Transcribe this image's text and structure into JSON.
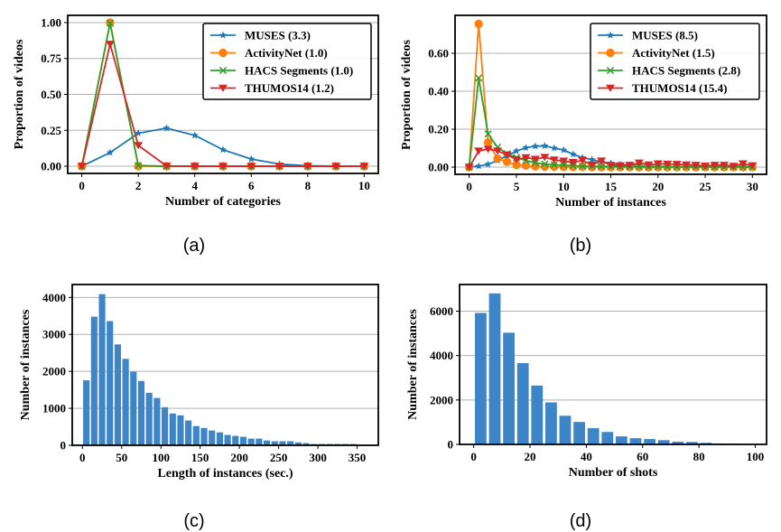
{
  "chart_data": [
    {
      "id": "a",
      "type": "line",
      "caption": "(a)",
      "xlabel": "Number of categories",
      "ylabel": "Proportion of videos",
      "xlim": [
        -0.5,
        10.5
      ],
      "ylim": [
        -0.05,
        1.05
      ],
      "xticks": [
        0,
        2,
        4,
        6,
        8,
        10
      ],
      "xtick_labels": [
        "0",
        "2",
        "4",
        "6",
        "8",
        "10"
      ],
      "yticks": [
        0,
        0.25,
        0.5,
        0.75,
        1.0
      ],
      "ytick_labels": [
        "0.00",
        "0.25",
        "0.50",
        "0.75",
        "1.00"
      ],
      "grid": "y",
      "legend": "top-right",
      "x": [
        0,
        1,
        2,
        3,
        4,
        5,
        6,
        7,
        8,
        9,
        10
      ],
      "series": [
        {
          "name": "MUSES (3.3)",
          "color": "#1f77b4",
          "marker": "star",
          "values": [
            0,
            0.095,
            0.23,
            0.265,
            0.215,
            0.115,
            0.05,
            0.015,
            0.003,
            0.001,
            0
          ]
        },
        {
          "name": "ActivityNet (1.0)",
          "color": "#ff7f0e",
          "marker": "circle",
          "values": [
            0,
            1.0,
            0,
            0,
            0,
            0,
            0,
            0,
            0,
            0,
            0
          ]
        },
        {
          "name": "HACS Segments (1.0)",
          "color": "#2ca02c",
          "marker": "x",
          "values": [
            0,
            0.995,
            0.005,
            0,
            0,
            0,
            0,
            0,
            0,
            0,
            0
          ]
        },
        {
          "name": "THUMOS14 (1.2)",
          "color": "#d62728",
          "marker": "triangle-down",
          "values": [
            0,
            0.85,
            0.145,
            0.002,
            0,
            0,
            0,
            0,
            0,
            0,
            0
          ]
        }
      ]
    },
    {
      "id": "b",
      "type": "line",
      "caption": "(b)",
      "xlabel": "Number of instances",
      "ylabel": "Proportion of videos",
      "xlim": [
        -1.5,
        31.5
      ],
      "ylim": [
        -0.038,
        0.8
      ],
      "xticks": [
        0,
        5,
        10,
        15,
        20,
        25,
        30
      ],
      "xtick_labels": [
        "0",
        "5",
        "10",
        "15",
        "20",
        "25",
        "30"
      ],
      "yticks": [
        0,
        0.2,
        0.4,
        0.6
      ],
      "ytick_labels": [
        "0.00",
        "0.20",
        "0.40",
        "0.60"
      ],
      "grid": "y",
      "legend": "top-right",
      "x": [
        0,
        1,
        2,
        3,
        4,
        5,
        6,
        7,
        8,
        9,
        10,
        11,
        12,
        13,
        14,
        15,
        16,
        17,
        18,
        19,
        20,
        21,
        22,
        23,
        24,
        25,
        26,
        27,
        28,
        29,
        30
      ],
      "series": [
        {
          "name": "MUSES (8.5)",
          "color": "#1f77b4",
          "marker": "star",
          "values": [
            0,
            0.005,
            0.015,
            0.035,
            0.06,
            0.085,
            0.102,
            0.11,
            0.112,
            0.1,
            0.09,
            0.068,
            0.05,
            0.04,
            0.028,
            0.02,
            0.014,
            0.01,
            0.007,
            0.005,
            0.004,
            0.003,
            0.002,
            0.002,
            0.001,
            0.001,
            0.001,
            0.001,
            0.001,
            0.001,
            0.001
          ]
        },
        {
          "name": "ActivityNet (1.5)",
          "color": "#ff7f0e",
          "marker": "circle",
          "values": [
            0,
            0.755,
            0.13,
            0.045,
            0.028,
            0.012,
            0.008,
            0.004,
            0.003,
            0.002,
            0.001,
            0.001,
            0.001,
            0,
            0,
            0,
            0,
            0,
            0,
            0,
            0,
            0,
            0,
            0,
            0,
            0,
            0,
            0,
            0,
            0,
            0
          ]
        },
        {
          "name": "HACS Segments (2.8)",
          "color": "#2ca02c",
          "marker": "x",
          "values": [
            0,
            0.47,
            0.175,
            0.105,
            0.07,
            0.05,
            0.035,
            0.022,
            0.016,
            0.012,
            0.01,
            0.007,
            0.005,
            0.004,
            0.003,
            0.003,
            0.002,
            0.002,
            0.002,
            0.001,
            0.001,
            0.001,
            0.001,
            0.001,
            0.001,
            0.001,
            0.001,
            0.001,
            0.001,
            0.001,
            0.001
          ]
        },
        {
          "name": "THUMOS14 (15.4)",
          "color": "#d62728",
          "marker": "triangle-down",
          "values": [
            0,
            0.085,
            0.095,
            0.085,
            0.065,
            0.04,
            0.05,
            0.042,
            0.052,
            0.038,
            0.032,
            0.025,
            0.035,
            0.012,
            0.033,
            0.01,
            0.008,
            0.01,
            0.022,
            0.012,
            0.018,
            0.016,
            0.015,
            0.012,
            0.01,
            0.006,
            0.01,
            0.01,
            0.005,
            0.018,
            0.008
          ]
        }
      ]
    },
    {
      "id": "c",
      "type": "bar",
      "caption": "(c)",
      "xlabel": "Length of instances (sec.)",
      "ylabel": "Number of instances",
      "xlim": [
        -13,
        377
      ],
      "ylim": [
        0,
        4350
      ],
      "xticks": [
        0,
        50,
        100,
        150,
        200,
        250,
        300,
        350
      ],
      "xtick_labels": [
        "0",
        "50",
        "100",
        "150",
        "200",
        "250",
        "300",
        "350"
      ],
      "yticks": [
        0,
        1000,
        2000,
        3000,
        4000
      ],
      "ytick_labels": [
        "0",
        "1000",
        "2000",
        "3000",
        "4000"
      ],
      "grid": "y",
      "color": "#3d85c6",
      "bin_width": 10,
      "categories": [
        5,
        15,
        25,
        35,
        45,
        55,
        65,
        75,
        85,
        95,
        105,
        115,
        125,
        135,
        145,
        155,
        165,
        175,
        185,
        195,
        205,
        215,
        225,
        235,
        245,
        255,
        265,
        275,
        285,
        295,
        305,
        315,
        325,
        335,
        345
      ],
      "values": [
        1760,
        3480,
        4090,
        3360,
        2730,
        2340,
        1990,
        1740,
        1420,
        1280,
        1030,
        860,
        810,
        670,
        520,
        470,
        400,
        350,
        280,
        255,
        230,
        180,
        180,
        130,
        110,
        110,
        110,
        80,
        60,
        35,
        35,
        35,
        35,
        35,
        35
      ]
    },
    {
      "id": "d",
      "type": "bar",
      "caption": "(d)",
      "xlabel": "Number of shots",
      "ylabel": "Number of instances",
      "xlim": [
        -5,
        104
      ],
      "ylim": [
        0,
        7200
      ],
      "xticks": [
        0,
        20,
        40,
        60,
        80,
        100
      ],
      "xtick_labels": [
        "0",
        "20",
        "40",
        "60",
        "80",
        "100"
      ],
      "yticks": [
        0,
        2000,
        4000,
        6000
      ],
      "ytick_labels": [
        "0",
        "2000",
        "4000",
        "6000"
      ],
      "grid": "y",
      "color": "#3d85c6",
      "bin_width": 5,
      "categories": [
        2.5,
        7.5,
        12.5,
        17.5,
        22.5,
        27.5,
        32.5,
        37.5,
        42.5,
        47.5,
        52.5,
        57.5,
        62.5,
        67.5,
        72.5,
        77.5,
        82.5,
        87.5,
        92.5,
        97.5
      ],
      "values": [
        5920,
        6800,
        5030,
        3660,
        2650,
        1890,
        1290,
        1010,
        730,
        560,
        360,
        280,
        240,
        190,
        120,
        110,
        70,
        40,
        30,
        20
      ]
    }
  ]
}
